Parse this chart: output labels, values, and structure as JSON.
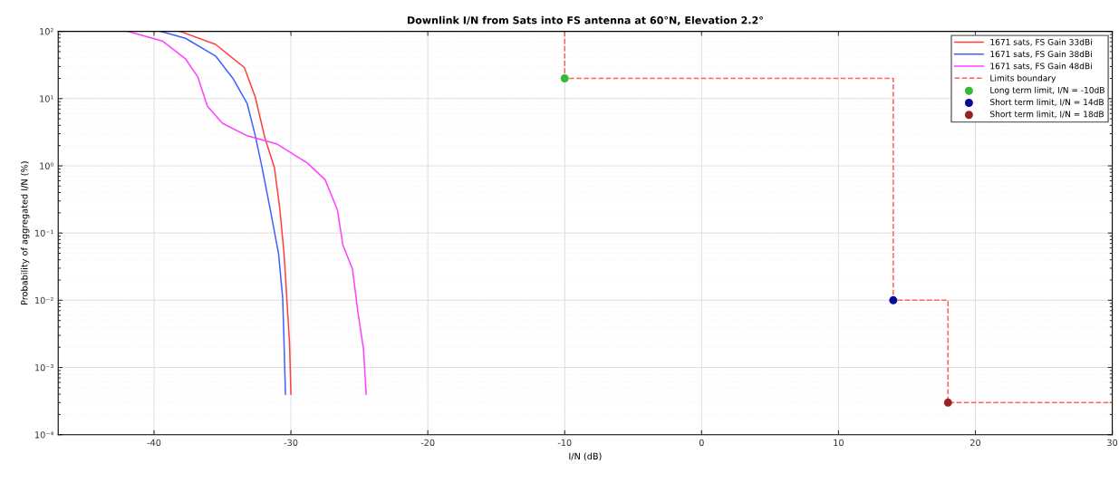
{
  "chart_data": {
    "type": "line",
    "title": "Downlink I/N from Sats into FS antenna at 60°N, Elevation 2.2°",
    "xlabel": "I/N (dB)",
    "ylabel": "Probability of aggregated I/N (%)",
    "log": "y",
    "grid": true,
    "legend": "top right",
    "xlim": [
      -47,
      30
    ],
    "xticks": [
      -40,
      -30,
      -20,
      -10,
      0,
      10,
      20,
      30
    ],
    "ylim": [
      0.0001,
      100
    ],
    "yticks": [
      {
        "value": 0.0001,
        "label": "10⁻⁴"
      },
      {
        "value": 0.001,
        "label": "10⁻³"
      },
      {
        "value": 0.01,
        "label": "10⁻²"
      },
      {
        "value": 0.1,
        "label": "10⁻¹"
      },
      {
        "value": 1,
        "label": "10⁰"
      },
      {
        "value": 10,
        "label": "10¹"
      },
      {
        "value": 100,
        "label": "10²"
      }
    ],
    "series": [
      {
        "name": "1671 sats, FS Gain 33dBi",
        "color": "#ff4040",
        "line_style": "solid",
        "x": [
          -38.1,
          -35.5,
          -33.4,
          -32.6,
          -31.9,
          -31.2,
          -30.8,
          -30.5,
          -30.3,
          -30.1,
          -30.0
        ],
        "values": [
          100,
          64,
          29,
          10.5,
          2.6,
          0.93,
          0.22,
          0.049,
          0.0107,
          0.0023,
          0.0004
        ]
      },
      {
        "name": "1671 sats, FS Gain 38dBi",
        "color": "#4060ff",
        "line_style": "solid",
        "x": [
          -39.5,
          -37.7,
          -35.5,
          -34.2,
          -33.2,
          -32.6,
          -32.1,
          -31.5,
          -30.9,
          -30.6,
          -30.5,
          -30.4
        ],
        "values": [
          100,
          79,
          43,
          19.5,
          8.5,
          2.8,
          0.93,
          0.22,
          0.049,
          0.0107,
          0.0023,
          0.0004
        ]
      },
      {
        "name": "1671 sats, FS Gain 48dBi",
        "color": "#ff40ff",
        "line_style": "solid",
        "x": [
          -41.9,
          -39.4,
          -37.7,
          -36.8,
          -36.1,
          -35.0,
          -33.2,
          -31.0,
          -28.8,
          -27.5,
          -26.6,
          -26.2,
          -25.5,
          -25.1,
          -24.7,
          -24.5
        ],
        "values": [
          100,
          72,
          39,
          21,
          7.7,
          4.3,
          2.8,
          2.1,
          1.1,
          0.62,
          0.22,
          0.066,
          0.029,
          0.0065,
          0.0019,
          0.0004
        ]
      },
      {
        "name": "Limits boundary",
        "color": "#ff6060",
        "line_style": "dashed",
        "x": [
          -10,
          -10,
          14,
          14,
          18,
          18,
          30
        ],
        "values": [
          100,
          20,
          20,
          0.01,
          0.01,
          0.0003,
          0.0003
        ]
      },
      {
        "name": "Long term limit, I/N = -10dB",
        "type": "scatter",
        "marker": "circle",
        "color": "#33bb33",
        "x": [
          -10
        ],
        "values": [
          20
        ]
      },
      {
        "name": "Short term limit, I/N = 14dB",
        "type": "scatter",
        "marker": "circle",
        "color": "#0a0a99",
        "x": [
          14
        ],
        "values": [
          0.01
        ]
      },
      {
        "name": "Short term limit, I/N = 18dB",
        "type": "scatter",
        "marker": "circle",
        "color": "#992222",
        "x": [
          18
        ],
        "values": [
          0.0003
        ]
      }
    ]
  }
}
